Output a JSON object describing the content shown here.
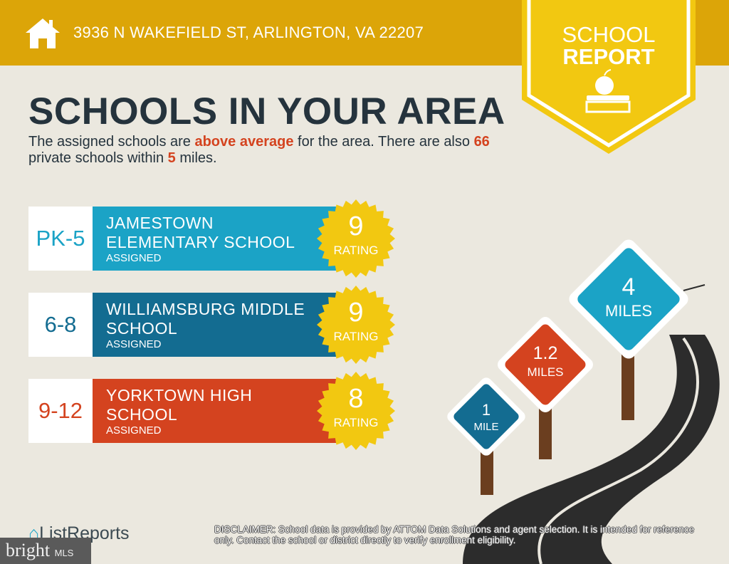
{
  "header": {
    "address": "3936 N WAKEFIELD ST, ARLINGTON, VA 22207",
    "badge_line1": "SCHOOL",
    "badge_line2": "REPORT"
  },
  "title": "SCHOOLS IN YOUR AREA",
  "description": {
    "p1": "The assigned schools are ",
    "h1": "above average",
    "p2": " for the area. There are also ",
    "h2": "66",
    "p3": " private schools within ",
    "h3": "5",
    "p4": " miles."
  },
  "schools": [
    {
      "grade": "PK-5",
      "name1": "JAMESTOWN",
      "name2": "ELEMENTARY SCHOOL",
      "status": "ASSIGNED",
      "rating": "9",
      "rating_label": "RATING",
      "color": "#1ba3c6"
    },
    {
      "grade": "6-8",
      "name1": "WILLIAMSBURG MIDDLE",
      "name2": "SCHOOL",
      "status": "ASSIGNED",
      "rating": "9",
      "rating_label": "RATING",
      "color": "#136c91"
    },
    {
      "grade": "9-12",
      "name1": "YORKTOWN HIGH",
      "name2": "SCHOOL",
      "status": "ASSIGNED",
      "rating": "8",
      "rating_label": "RATING",
      "color": "#d4431f"
    }
  ],
  "signs": [
    {
      "value": "1",
      "unit": "MILE",
      "color": "#136c91"
    },
    {
      "value": "1.2",
      "unit": "MILES",
      "color": "#d4431f"
    },
    {
      "value": "4",
      "unit": "MILES",
      "color": "#1ba3c6"
    }
  ],
  "footer": {
    "logo": "ListReports",
    "mls_brand": "bright",
    "mls_suffix": "MLS",
    "disclaimer_label": "DISCLAIMER:",
    "disclaimer": " School data is provided by ATTOM Data Solutions and agent selection. It is intended for reference only. Contact the school or district directly to verify enrollment eligibility."
  }
}
